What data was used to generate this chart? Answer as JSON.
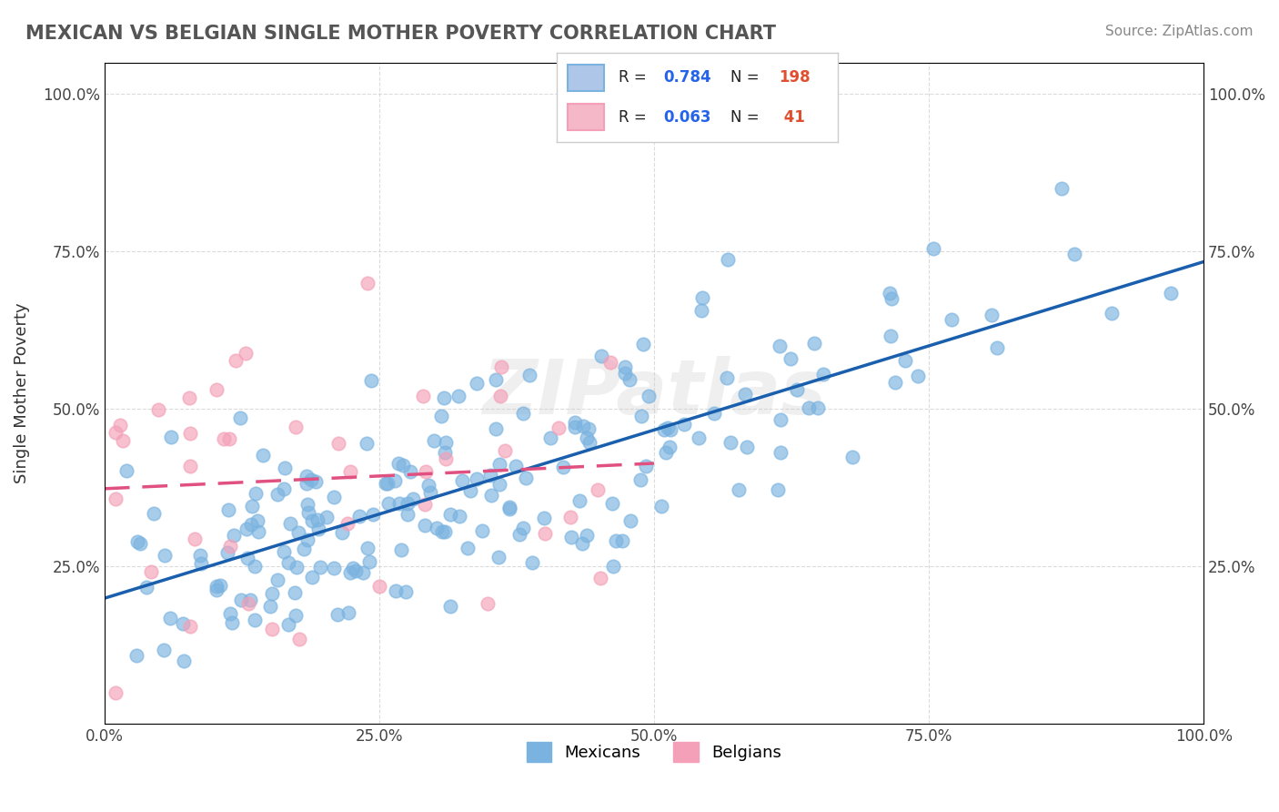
{
  "title": "MEXICAN VS BELGIAN SINGLE MOTHER POVERTY CORRELATION CHART",
  "source": "Source: ZipAtlas.com",
  "xlabel": "",
  "ylabel": "Single Mother Poverty",
  "watermark": "ZIPatlas",
  "legend_entries": [
    {
      "label": "R = 0.784   N = 198",
      "color": "#aec6e8",
      "text_color": "#2563eb"
    },
    {
      "label": "R = 0.063   N =  41",
      "color": "#f4b8c8",
      "text_color": "#2563eb"
    }
  ],
  "mexicans_color": "#7ab3e0",
  "belgians_color": "#f4a0b8",
  "regression_mexican_color": "#1a5fad",
  "regression_belgian_color": "#e05080",
  "background_color": "#ffffff",
  "grid_color": "#cccccc",
  "xlim": [
    0,
    1
  ],
  "ylim": [
    0,
    1
  ],
  "xticks": [
    0,
    0.25,
    0.5,
    0.75,
    1.0
  ],
  "yticks": [
    0.25,
    0.5,
    0.75,
    1.0
  ],
  "xtick_labels": [
    "0.0%",
    "25.0%",
    "50.0%",
    "75.0%",
    "100.0%"
  ],
  "ytick_labels": [
    "25.0%",
    "50.0%",
    "75.0%",
    "100.0%"
  ],
  "right_ytick_labels": [
    "25.0%",
    "50.0%",
    "75.0%",
    "100.0%"
  ],
  "mexicans_seed": 42,
  "belgians_seed": 7,
  "R_mexican": 0.784,
  "N_mexican": 198,
  "R_belgian": 0.063,
  "N_belgian": 41
}
